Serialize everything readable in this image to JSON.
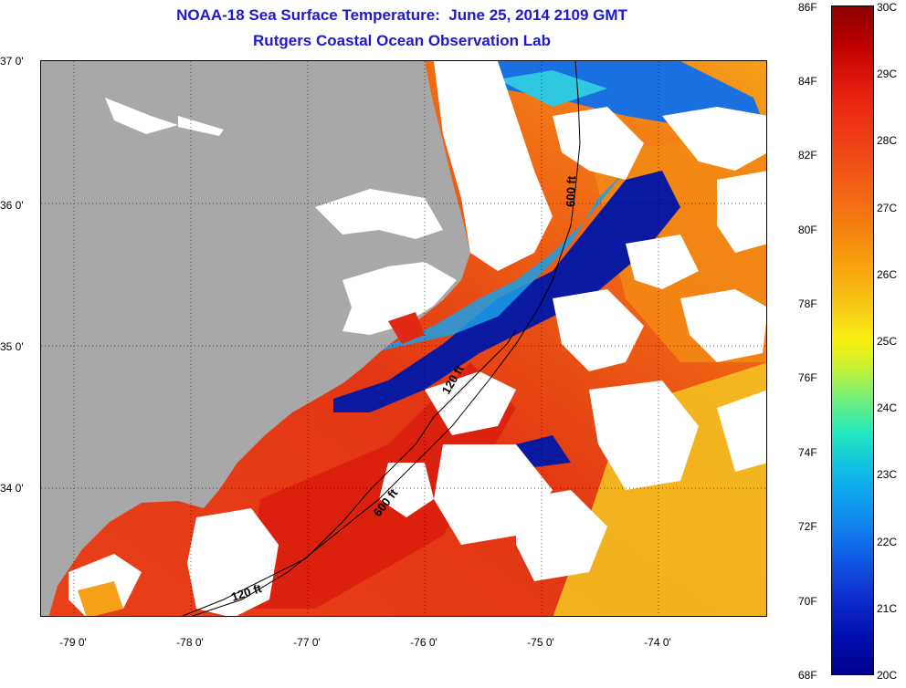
{
  "title": {
    "line1": "NOAA-18 Sea Surface Temperature:  June 25, 2014 2109 GMT",
    "line2": "Rutgers Coastal Ocean Observation Lab"
  },
  "map": {
    "lat_labels": [
      "37 0'",
      "36 0'",
      "35 0'",
      "34 0'"
    ],
    "lon_labels": [
      "-79 0'",
      "-78 0'",
      "-77 0'",
      "-76 0'",
      "-75 0'",
      "-74 0'"
    ],
    "isobath_labels": [
      "600 ft",
      "120 ft",
      "600 ft",
      "120 ft"
    ],
    "colors": {
      "land": "#a8a8a8",
      "cloud": "#ffffff",
      "warm": "#e83a14",
      "hot": "#d01a0a",
      "orange": "#f47a14",
      "yellow": "#f8d018",
      "cold": "#0a1aa0",
      "cool": "#1aa0e8"
    }
  },
  "colorbar": {
    "fahrenheit": [
      "86F",
      "84F",
      "82F",
      "80F",
      "78F",
      "76F",
      "74F",
      "72F",
      "70F",
      "68F"
    ],
    "celsius": [
      "30C",
      "29C",
      "28C",
      "27C",
      "26C",
      "25C",
      "24C",
      "23C",
      "22C",
      "21C",
      "20C"
    ]
  }
}
